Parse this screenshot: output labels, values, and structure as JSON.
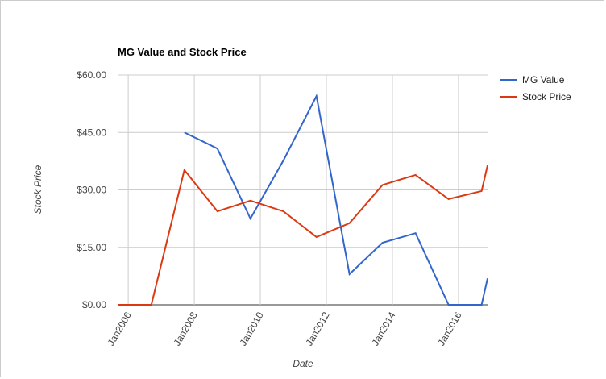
{
  "chart_data": {
    "type": "line",
    "title": "MG Value and Stock Price",
    "x_label": "Date",
    "y_label": "Stock Price",
    "x": [
      2005.7,
      2006.7,
      2007.7,
      2008.7,
      2009.7,
      2010.7,
      2011.7,
      2012.7,
      2013.7,
      2014.7,
      2015.7,
      2016.7,
      2016.88
    ],
    "series": [
      {
        "name": "MG Value",
        "color": "#3366cc",
        "values": [
          null,
          null,
          45.0,
          40.8,
          22.5,
          37.7,
          54.5,
          8.0,
          16.2,
          18.7,
          0,
          0,
          6.9
        ]
      },
      {
        "name": "Stock Price",
        "color": "#dc3912",
        "values": [
          0,
          0,
          35.2,
          24.4,
          27.2,
          24.4,
          17.7,
          21.3,
          31.3,
          33.9,
          27.6,
          29.7,
          36.4
        ]
      }
    ],
    "xlim": [
      2005.68,
      2016.88
    ],
    "xticks": [
      {
        "value": 2006,
        "label": "Jan2006"
      },
      {
        "value": 2008,
        "label": "Jan2008"
      },
      {
        "value": 2010,
        "label": "Jan2010"
      },
      {
        "value": 2012,
        "label": "Jan2012"
      },
      {
        "value": 2014,
        "label": "Jan2014"
      },
      {
        "value": 2016,
        "label": "Jan2016"
      }
    ],
    "ylim": [
      0,
      60
    ],
    "yticks": [
      {
        "value": 0,
        "label": "$0.00"
      },
      {
        "value": 15,
        "label": "$15.00"
      },
      {
        "value": 30,
        "label": "$30.00"
      },
      {
        "value": 45,
        "label": "$45.00"
      },
      {
        "value": 60,
        "label": "$60.00"
      }
    ],
    "grid": true,
    "legend": "right"
  }
}
